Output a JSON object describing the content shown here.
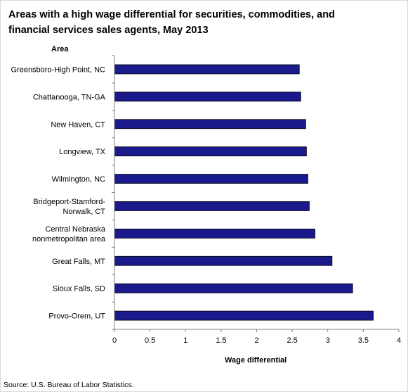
{
  "chart_data": {
    "type": "bar",
    "orientation": "horizontal",
    "title": "Areas with a high wage differential for securities, commodities, and financial services sales agents, May 2013",
    "ylabel": "Area",
    "xlabel": "Wage differential",
    "xlim": [
      0,
      4
    ],
    "xticks": [
      "0",
      "0.5",
      "1",
      "1.5",
      "2",
      "2.5",
      "3",
      "3.5",
      "4"
    ],
    "grid": false,
    "bar_color": "#1a1a8c",
    "categories": [
      [
        "Greensboro-High Point, NC"
      ],
      [
        "Chattanooga, TN-GA"
      ],
      [
        "New Haven, CT"
      ],
      [
        "Longview, TX"
      ],
      [
        "Wilmington, NC"
      ],
      [
        "Bridgeport-Stamford-",
        "Norwalk, CT"
      ],
      [
        "Central Nebraska",
        "nonmetropolitan area"
      ],
      [
        "Great Falls, MT"
      ],
      [
        "Sioux Falls, SD"
      ],
      [
        "Provo-Orem, UT"
      ]
    ],
    "values": [
      2.6,
      2.62,
      2.69,
      2.7,
      2.72,
      2.74,
      2.82,
      3.06,
      3.35,
      3.64
    ],
    "source": "Source: U.S. Bureau of Labor Statistics."
  }
}
